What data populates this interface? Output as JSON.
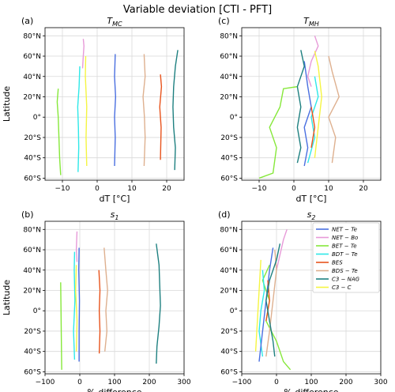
{
  "figure": {
    "suptitle": "Variable deviation [CTI - PFT]"
  },
  "legend": [
    {
      "label": "NET − Te",
      "color": "#4a6fe0"
    },
    {
      "label": "NET − Bo",
      "color": "#e79ad8"
    },
    {
      "label": "BET − Te",
      "color": "#86e83a"
    },
    {
      "label": "BDT − Te",
      "color": "#2ee8e8"
    },
    {
      "label": "BES",
      "color": "#e8531c"
    },
    {
      "label": "BDS − Te",
      "color": "#deb08f"
    },
    {
      "label": "C3 − NAG",
      "color": "#1e8080"
    },
    {
      "label": "C3 − C",
      "color": "#f5f542"
    }
  ],
  "chart_data": [
    {
      "type": "line",
      "panel": "(a)",
      "title": "T",
      "title_sub": "MC",
      "xlabel": "dT [°C]",
      "ylabel": "Latitude",
      "xlim": [
        -15,
        25
      ],
      "ylim": [
        -62,
        88
      ],
      "xticks": [
        -10,
        0,
        10,
        20
      ],
      "xtick_labels": [
        "−10",
        "0",
        "10",
        "20"
      ],
      "yticks": [
        -60,
        -40,
        -20,
        0,
        20,
        40,
        60,
        80
      ],
      "ytick_labels": [
        "60°S",
        "40°S",
        "20°S",
        "0°",
        "20°N",
        "40°N",
        "60°N",
        "80°N"
      ],
      "grid": true,
      "series": [
        {
          "color": "#86e83a",
          "values": [
            [
              -10.5,
              -57
            ],
            [
              -10.8,
              -40
            ],
            [
              -11,
              -20
            ],
            [
              -11.2,
              0
            ],
            [
              -11.5,
              15
            ],
            [
              -11.2,
              28
            ]
          ]
        },
        {
          "color": "#e79ad8",
          "values": [
            [
              -4.2,
              48
            ],
            [
              -4.0,
              60
            ],
            [
              -3.8,
              70
            ],
            [
              -4.0,
              77
            ]
          ]
        },
        {
          "color": "#2ee8e8",
          "values": [
            [
              -5.5,
              -54
            ],
            [
              -5.3,
              -30
            ],
            [
              -5.4,
              -10
            ],
            [
              -5.6,
              10
            ],
            [
              -5.2,
              30
            ],
            [
              -5.0,
              50
            ]
          ]
        },
        {
          "color": "#f5f542",
          "values": [
            [
              -3.0,
              -48
            ],
            [
              -3.2,
              -20
            ],
            [
              -3.0,
              10
            ],
            [
              -3.4,
              40
            ],
            [
              -3.3,
              60
            ]
          ]
        },
        {
          "color": "#4a6fe0",
          "values": [
            [
              5.2,
              62
            ],
            [
              5.0,
              40
            ],
            [
              5.3,
              20
            ],
            [
              5.0,
              0
            ],
            [
              5.2,
              -20
            ],
            [
              5.0,
              -48
            ]
          ]
        },
        {
          "color": "#deb08f",
          "values": [
            [
              13.5,
              62
            ],
            [
              13.8,
              40
            ],
            [
              13.2,
              20
            ],
            [
              13.6,
              0
            ],
            [
              13.8,
              -20
            ],
            [
              13.5,
              -48
            ]
          ]
        },
        {
          "color": "#e8531c",
          "values": [
            [
              18.2,
              42
            ],
            [
              18.5,
              30
            ],
            [
              18.0,
              10
            ],
            [
              18.4,
              -10
            ],
            [
              18.2,
              -42
            ]
          ]
        },
        {
          "color": "#1e8080",
          "values": [
            [
              23.2,
              66
            ],
            [
              22.5,
              50
            ],
            [
              22.0,
              30
            ],
            [
              21.8,
              10
            ],
            [
              22.0,
              -10
            ],
            [
              22.5,
              -30
            ],
            [
              22.3,
              -52
            ]
          ]
        }
      ]
    },
    {
      "type": "line",
      "panel": "(c)",
      "title": "T",
      "title_sub": "MH",
      "xlabel": "dT [°C]",
      "ylabel": "",
      "xlim": [
        -15,
        25
      ],
      "ylim": [
        -62,
        88
      ],
      "xticks": [
        -10,
        0,
        10,
        20
      ],
      "xtick_labels": [
        "−10",
        "0",
        "10",
        "20"
      ],
      "yticks": [
        -60,
        -40,
        -20,
        0,
        20,
        40,
        60,
        80
      ],
      "ytick_labels": [
        "60°S",
        "40°S",
        "20°S",
        "0°",
        "20°N",
        "40°N",
        "60°N",
        "80°N"
      ],
      "grid": true,
      "series": [
        {
          "color": "#86e83a",
          "values": [
            [
              -10,
              -60
            ],
            [
              -6,
              -55
            ],
            [
              -5,
              -30
            ],
            [
              -7,
              -10
            ],
            [
              -4,
              10
            ],
            [
              -3,
              28
            ],
            [
              1,
              30
            ]
          ]
        },
        {
          "color": "#e79ad8",
          "values": [
            [
              6,
              80
            ],
            [
              7,
              70
            ],
            [
              5,
              55
            ],
            [
              4,
              40
            ],
            [
              5,
              30
            ]
          ]
        },
        {
          "color": "#2ee8e8",
          "values": [
            [
              4,
              -45
            ],
            [
              6,
              -20
            ],
            [
              5,
              0
            ],
            [
              7,
              20
            ],
            [
              6,
              40
            ]
          ]
        },
        {
          "color": "#f5f542",
          "values": [
            [
              6,
              -40
            ],
            [
              7,
              -10
            ],
            [
              8,
              20
            ],
            [
              7,
              50
            ],
            [
              6,
              65
            ]
          ]
        },
        {
          "color": "#4a6fe0",
          "values": [
            [
              3,
              -48
            ],
            [
              4,
              -30
            ],
            [
              3,
              -10
            ],
            [
              5,
              10
            ],
            [
              4,
              30
            ],
            [
              3,
              55
            ]
          ]
        },
        {
          "color": "#deb08f",
          "values": [
            [
              11,
              -45
            ],
            [
              12,
              -20
            ],
            [
              10,
              0
            ],
            [
              13,
              20
            ],
            [
              11,
              45
            ],
            [
              10,
              60
            ]
          ]
        },
        {
          "color": "#e8531c",
          "values": [
            [
              5,
              -30
            ],
            [
              6,
              -10
            ],
            [
              5,
              10
            ]
          ]
        },
        {
          "color": "#1e8080",
          "values": [
            [
              2,
              66
            ],
            [
              3,
              50
            ],
            [
              1,
              30
            ],
            [
              2,
              10
            ],
            [
              1,
              -10
            ],
            [
              2,
              -30
            ],
            [
              1,
              -45
            ]
          ]
        }
      ]
    },
    {
      "type": "line",
      "panel": "(b)",
      "title": "s",
      "title_sub": "1",
      "xlabel": "% difference",
      "ylabel": "Latitude",
      "xlim": [
        -100,
        300
      ],
      "ylim": [
        -62,
        88
      ],
      "xticks": [
        -100,
        0,
        100,
        200,
        300
      ],
      "xtick_labels": [
        "−100",
        "0",
        "100",
        "200",
        "300"
      ],
      "yticks": [
        -60,
        -40,
        -20,
        0,
        20,
        40,
        60,
        80
      ],
      "ytick_labels": [
        "60°S",
        "40°S",
        "20°S",
        "0°",
        "20°N",
        "40°N",
        "60°N",
        "80°N"
      ],
      "grid": true,
      "series": [
        {
          "color": "#86e83a",
          "values": [
            [
              -52,
              -58
            ],
            [
              -53,
              -30
            ],
            [
              -54,
              0
            ],
            [
              -55,
              28
            ]
          ]
        },
        {
          "color": "#e79ad8",
          "values": [
            [
              -8,
              78
            ],
            [
              -10,
              60
            ],
            [
              -8,
              48
            ]
          ]
        },
        {
          "color": "#2ee8e8",
          "values": [
            [
              -15,
              -48
            ],
            [
              -18,
              -20
            ],
            [
              -14,
              10
            ],
            [
              -16,
              40
            ],
            [
              -15,
              58
            ]
          ]
        },
        {
          "color": "#f5f542",
          "values": [
            [
              -10,
              -40
            ],
            [
              -8,
              -10
            ],
            [
              -12,
              20
            ],
            [
              -10,
              45
            ]
          ]
        },
        {
          "color": "#4a6fe0",
          "values": [
            [
              -2,
              62
            ],
            [
              -3,
              40
            ],
            [
              -1,
              10
            ],
            [
              -2,
              -20
            ],
            [
              -2,
              -50
            ]
          ]
        },
        {
          "color": "#deb08f",
          "values": [
            [
              70,
              62
            ],
            [
              75,
              40
            ],
            [
              80,
              20
            ],
            [
              75,
              0
            ],
            [
              78,
              -20
            ],
            [
              72,
              -40
            ]
          ]
        },
        {
          "color": "#e8531c",
          "values": [
            [
              55,
              40
            ],
            [
              58,
              20
            ],
            [
              56,
              0
            ],
            [
              58,
              -20
            ],
            [
              56,
              -42
            ]
          ]
        },
        {
          "color": "#1e8080",
          "values": [
            [
              220,
              66
            ],
            [
              228,
              45
            ],
            [
              230,
              25
            ],
            [
              232,
              5
            ],
            [
              228,
              -15
            ],
            [
              222,
              -35
            ],
            [
              220,
              -52
            ]
          ]
        }
      ]
    },
    {
      "type": "line",
      "panel": "(d)",
      "title": "s",
      "title_sub": "2",
      "xlabel": "% difference",
      "ylabel": "",
      "xlim": [
        -100,
        300
      ],
      "ylim": [
        -62,
        88
      ],
      "xticks": [
        -100,
        0,
        100,
        200,
        300
      ],
      "xtick_labels": [
        "−100",
        "0",
        "100",
        "200",
        "300"
      ],
      "yticks": [
        -60,
        -40,
        -20,
        0,
        20,
        40,
        60,
        80
      ],
      "ytick_labels": [
        "60°S",
        "40°S",
        "20°S",
        "0°",
        "20°N",
        "40°N",
        "60°N",
        "80°N"
      ],
      "grid": true,
      "series": [
        {
          "color": "#86e83a",
          "values": [
            [
              40,
              -58
            ],
            [
              20,
              -50
            ],
            [
              0,
              -30
            ],
            [
              -30,
              -10
            ],
            [
              -20,
              10
            ],
            [
              -40,
              30
            ],
            [
              -20,
              45
            ]
          ]
        },
        {
          "color": "#e79ad8",
          "values": [
            [
              30,
              80
            ],
            [
              20,
              70
            ],
            [
              10,
              55
            ],
            [
              0,
              40
            ]
          ]
        },
        {
          "color": "#2ee8e8",
          "values": [
            [
              -40,
              -45
            ],
            [
              -50,
              -20
            ],
            [
              -45,
              0
            ],
            [
              -35,
              20
            ],
            [
              -40,
              40
            ]
          ]
        },
        {
          "color": "#f5f542",
          "values": [
            [
              -60,
              -40
            ],
            [
              -55,
              -10
            ],
            [
              -50,
              20
            ],
            [
              -45,
              50
            ]
          ]
        },
        {
          "color": "#4a6fe0",
          "values": [
            [
              -50,
              -50
            ],
            [
              -40,
              -20
            ],
            [
              -30,
              10
            ],
            [
              -20,
              40
            ],
            [
              -10,
              62
            ]
          ]
        },
        {
          "color": "#deb08f",
          "values": [
            [
              -30,
              -45
            ],
            [
              -20,
              -20
            ],
            [
              -10,
              10
            ],
            [
              0,
              40
            ],
            [
              -5,
              60
            ]
          ]
        },
        {
          "color": "#e8531c",
          "values": [
            [
              -30,
              -10
            ],
            [
              -20,
              10
            ],
            [
              -25,
              30
            ]
          ]
        },
        {
          "color": "#1e8080",
          "values": [
            [
              10,
              66
            ],
            [
              0,
              50
            ],
            [
              -20,
              30
            ],
            [
              -30,
              10
            ],
            [
              -20,
              -10
            ],
            [
              -10,
              -30
            ],
            [
              -5,
              -45
            ]
          ]
        }
      ]
    }
  ]
}
